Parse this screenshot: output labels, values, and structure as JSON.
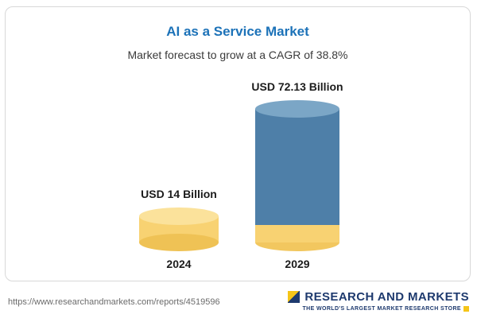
{
  "card": {
    "title": "AI as a Service Market",
    "subtitle": "Market forecast to grow at a CAGR of 38.8%"
  },
  "chart_data": {
    "type": "bar",
    "title": "AI as a Service Market",
    "subtitle": "Market forecast to grow at a CAGR of 38.8%",
    "categories": [
      "2024",
      "2029"
    ],
    "values": [
      14,
      72.13
    ],
    "value_labels": [
      "USD 14 Billion",
      "USD 72.13 Billion"
    ],
    "unit": "USD Billion",
    "cagr": "38.8%",
    "ylim": [
      0,
      75
    ],
    "grid": "off",
    "legend": "none",
    "colors": {
      "title_blue": "#1c72b8",
      "bar_2024": "#F8D272",
      "bar_2029": "#4E7FA8",
      "bar_2029_base": "#F8D272",
      "logo_navy": "#1E3A6E",
      "logo_yellow": "#F5C518"
    }
  },
  "footer": {
    "url": "https://www.researchandmarkets.com/reports/4519596",
    "logo_title": "RESEARCH AND MARKETS",
    "logo_tagline": "THE WORLD'S LARGEST MARKET RESEARCH STORE"
  }
}
